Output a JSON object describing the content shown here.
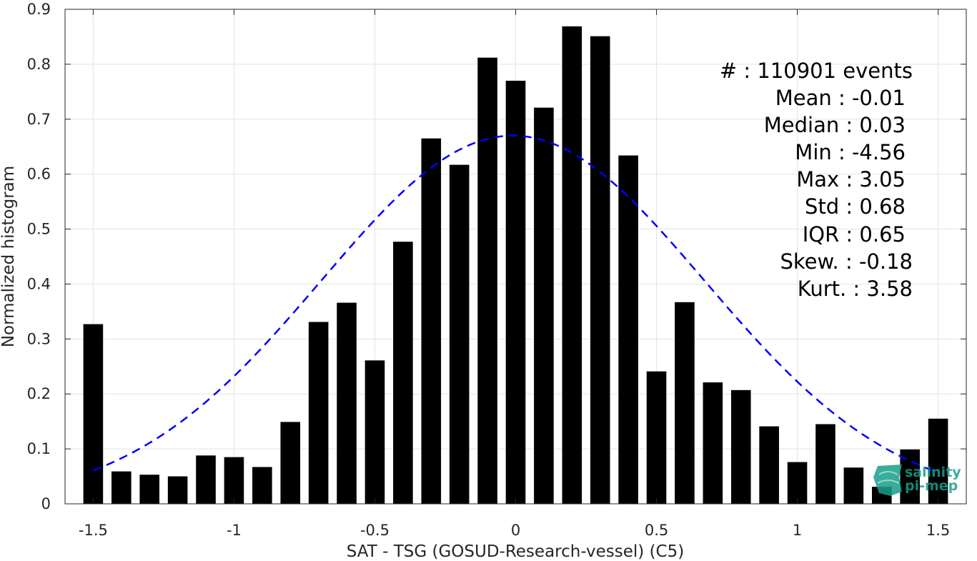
{
  "chart_data": {
    "type": "bar",
    "xlabel": "SAT - TSG (GOSUD-Research-vessel) (C5)",
    "ylabel": "Normalized histogram",
    "xlim": [
      -1.6,
      1.6
    ],
    "ylim": [
      0,
      0.9
    ],
    "grid": true,
    "x_ticks": [
      -1.5,
      -1,
      -0.5,
      0,
      0.5,
      1,
      1.5
    ],
    "x_tick_labels": [
      "-1.5",
      "-1",
      "-0.5",
      "0",
      "0.5",
      "1",
      "1.5"
    ],
    "y_ticks": [
      0,
      0.1,
      0.2,
      0.3,
      0.4,
      0.5,
      0.6,
      0.7,
      0.8,
      0.9
    ],
    "y_tick_labels": [
      "0",
      "0.1",
      "0.2",
      "0.3",
      "0.4",
      "0.5",
      "0.6",
      "0.7",
      "0.8",
      "0.9"
    ],
    "bin_width": 0.1,
    "bar_color": "#000000",
    "x": [
      -1.5,
      -1.4,
      -1.3,
      -1.2,
      -1.1,
      -1.0,
      -0.9,
      -0.8,
      -0.7,
      -0.6,
      -0.5,
      -0.4,
      -0.3,
      -0.2,
      -0.1,
      0.0,
      0.1,
      0.2,
      0.3,
      0.4,
      0.5,
      0.6,
      0.7,
      0.8,
      0.9,
      1.0,
      1.1,
      1.2,
      1.3,
      1.4,
      1.5
    ],
    "values": [
      0.327,
      0.059,
      0.053,
      0.05,
      0.088,
      0.085,
      0.067,
      0.149,
      0.331,
      0.366,
      0.261,
      0.477,
      0.665,
      0.617,
      0.812,
      0.77,
      0.721,
      0.869,
      0.851,
      0.634,
      0.241,
      0.367,
      0.221,
      0.207,
      0.141,
      0.076,
      0.145,
      0.066,
      0.031,
      0.099,
      0.155
    ],
    "fit": {
      "type": "gaussian",
      "mean": -0.01,
      "std": 0.68,
      "peak": 0.67,
      "x_range": [
        -1.5,
        1.5
      ],
      "color": "#0000ff",
      "style": "dashed"
    },
    "annotations": [
      "#   : 110901 events",
      "Mean : -0.01",
      "Median : 0.03",
      "Min : -4.56",
      "Max : 3.05",
      "Std : 0.68",
      "IQR : 0.65",
      "Skew. : -0.18",
      "Kurt. : 3.58"
    ]
  },
  "logo": {
    "line1": "salinity",
    "line2": "pi-mep",
    "color": "#1a9e8a"
  }
}
